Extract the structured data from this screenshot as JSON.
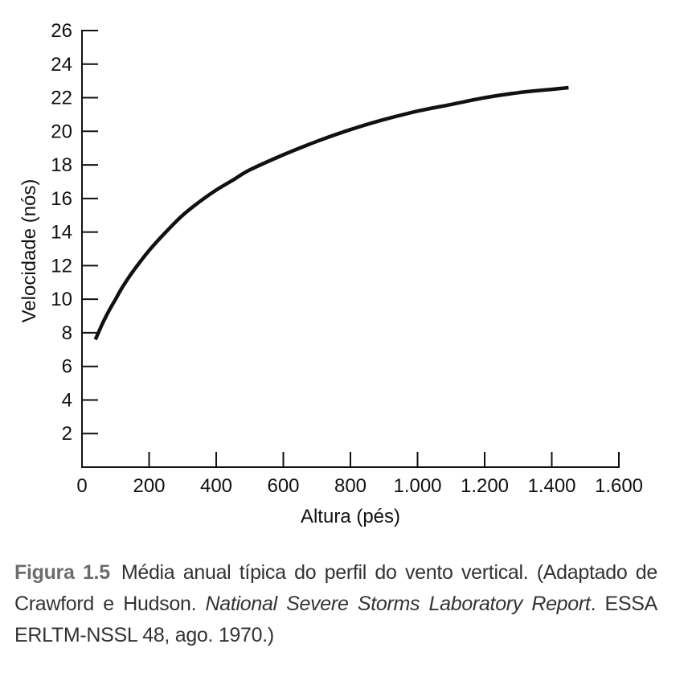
{
  "chart_data": {
    "type": "line",
    "xlabel": "Altura (pés)",
    "ylabel": "Velocidade (nós)",
    "xlim": [
      0,
      1600
    ],
    "ylim": [
      0,
      26
    ],
    "x_ticks": [
      0,
      200,
      400,
      600,
      800,
      1000,
      1200,
      1400,
      1600
    ],
    "x_tick_labels": [
      "0",
      "200",
      "400",
      "600",
      "800",
      "1.000",
      "1.200",
      "1.400",
      "1.600"
    ],
    "y_ticks": [
      2,
      4,
      6,
      8,
      10,
      12,
      14,
      16,
      18,
      20,
      22,
      24,
      26
    ],
    "y_tick_labels": [
      "2",
      "4",
      "6",
      "8",
      "10",
      "12",
      "14",
      "16",
      "18",
      "20",
      "22",
      "24",
      "26"
    ],
    "grid": false,
    "series": [
      {
        "x": [
          40,
          60,
          80,
          100,
          120,
          150,
          200,
          250,
          300,
          350,
          400,
          450,
          500,
          600,
          700,
          800,
          900,
          1000,
          1100,
          1200,
          1300,
          1400,
          1450
        ],
        "y": [
          7.6,
          8.5,
          9.3,
          10.0,
          10.7,
          11.6,
          12.9,
          14.0,
          15.0,
          15.8,
          16.5,
          17.1,
          17.7,
          18.6,
          19.4,
          20.1,
          20.7,
          21.2,
          21.6,
          22.0,
          22.3,
          22.5,
          22.6
        ]
      }
    ]
  },
  "caption": {
    "figure_label": "Figura 1.5",
    "text_1": "Média anual típica do perfil do vento vertical. (Adaptado de Crawford e Hudson. ",
    "ref_title": "National Severe Storms Laboratory Report",
    "text_2": ". ESSA ERLTM-NSSL 48, ago. 1970.)"
  }
}
